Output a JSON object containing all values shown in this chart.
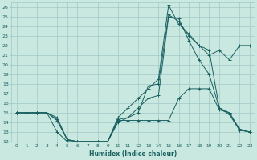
{
  "xlabel": "Humidex (Indice chaleur)",
  "bg_color": "#c8e8e0",
  "grid_color": "#a0c8c8",
  "line_color": "#1a6060",
  "xlim": [
    -0.5,
    23.5
  ],
  "ylim": [
    12,
    26.5
  ],
  "yticks": [
    12,
    13,
    14,
    15,
    16,
    17,
    18,
    19,
    20,
    21,
    22,
    23,
    24,
    25,
    26
  ],
  "xticks": [
    0,
    1,
    2,
    3,
    4,
    5,
    6,
    7,
    8,
    9,
    10,
    11,
    12,
    13,
    14,
    15,
    16,
    17,
    18,
    19,
    20,
    21,
    22,
    23
  ],
  "lines": [
    {
      "x": [
        0,
        1,
        2,
        3,
        4,
        5,
        6,
        7,
        8,
        9,
        10,
        11,
        12,
        13,
        14,
        15,
        16,
        17,
        18,
        19,
        20,
        21,
        22,
        23
      ],
      "y": [
        15,
        15,
        15,
        15,
        14.5,
        12.2,
        12,
        12,
        12,
        12,
        14.2,
        14.2,
        14.2,
        14.2,
        14.2,
        14.2,
        16.5,
        17.5,
        17.5,
        17.5,
        15.3,
        15.0,
        13.3,
        13.0
      ]
    },
    {
      "x": [
        0,
        1,
        2,
        3,
        4,
        5,
        6,
        7,
        8,
        9,
        10,
        11,
        12,
        13,
        14,
        15,
        16,
        17,
        18,
        19,
        20,
        21,
        22,
        23
      ],
      "y": [
        15,
        15,
        15,
        15,
        14.3,
        12.2,
        12,
        12,
        12,
        12,
        14.3,
        14.5,
        15.5,
        16.5,
        16.8,
        25.0,
        24.8,
        22.5,
        20.5,
        19.0,
        15.5,
        14.8,
        13.2,
        13.0
      ]
    },
    {
      "x": [
        0,
        1,
        2,
        3,
        4,
        5,
        6,
        7,
        8,
        9,
        10,
        11,
        12,
        13,
        14,
        15,
        16,
        17,
        18,
        19,
        20,
        21,
        22,
        23
      ],
      "y": [
        15,
        15,
        15,
        15,
        14.2,
        12.2,
        12,
        12,
        12,
        12,
        14.0,
        14.5,
        15.0,
        17.8,
        18.0,
        25.2,
        24.5,
        23.0,
        22.0,
        21.5,
        15.5,
        15.0,
        13.2,
        13.0
      ]
    },
    {
      "x": [
        0,
        1,
        2,
        3,
        4,
        5,
        6,
        7,
        8,
        9,
        10,
        11,
        12,
        13,
        14,
        15,
        16,
        17,
        18,
        19,
        20,
        21,
        22,
        23
      ],
      "y": [
        15,
        15,
        15,
        15,
        13.0,
        12.0,
        12,
        12,
        12,
        12,
        14.5,
        15.5,
        16.5,
        17.5,
        18.5,
        26.2,
        24.2,
        23.2,
        22.0,
        21.0,
        21.5,
        20.5,
        22.0,
        22.0
      ]
    }
  ]
}
